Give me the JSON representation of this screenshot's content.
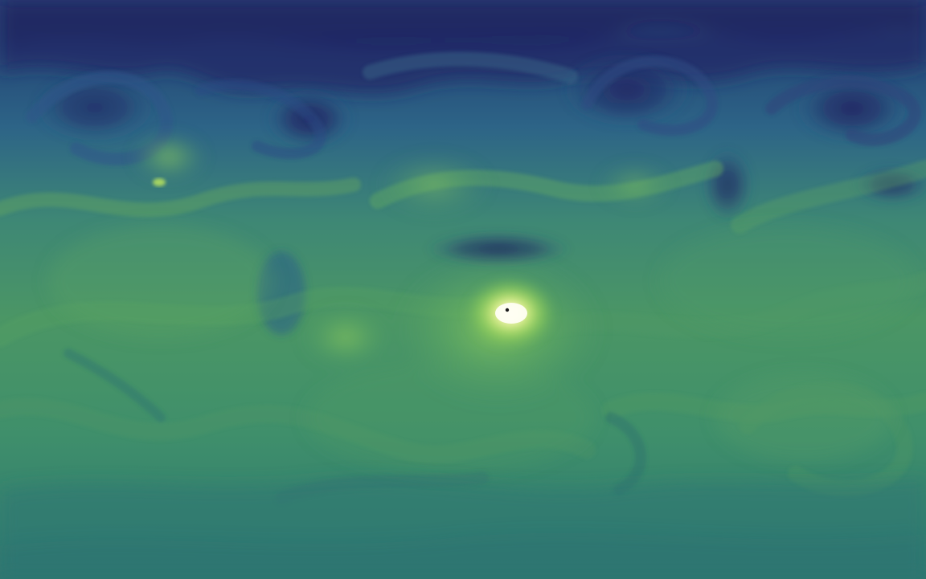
{
  "map": {
    "kind": "global equirectangular scalar field",
    "colormap": {
      "name": "viridis-like",
      "low": "#22215f",
      "mid_low": "#285d83",
      "mid": "#2f7b73",
      "mid_high": "#4f9d62",
      "high": "#92ce5b",
      "peak": "#fff8ce"
    },
    "labels": []
  }
}
